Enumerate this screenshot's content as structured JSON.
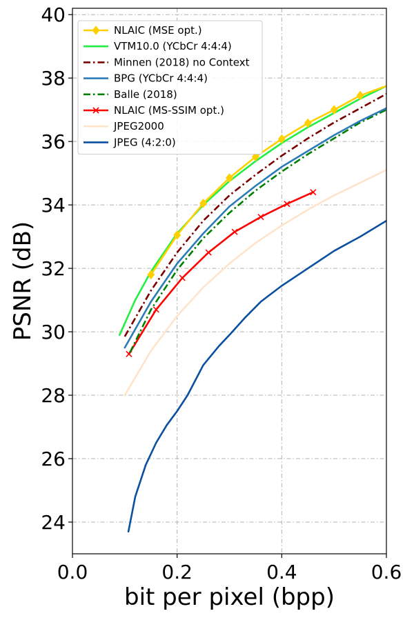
{
  "chart_data": {
    "type": "line",
    "xlabel": "bit per pixel (bpp)",
    "ylabel": "PSNR (dB)",
    "xlim": [
      0.0,
      0.6
    ],
    "ylim": [
      23.0,
      40.2
    ],
    "xticks": [
      0.0,
      0.2,
      0.4,
      0.6
    ],
    "xtick_labels": [
      "0.0",
      "0.2",
      "0.4",
      "0.6"
    ],
    "yticks": [
      24,
      26,
      28,
      30,
      32,
      34,
      36,
      38,
      40
    ],
    "ytick_labels": [
      "24",
      "26",
      "28",
      "30",
      "32",
      "34",
      "36",
      "38",
      "40"
    ],
    "grid": true,
    "legend_position": "top-left",
    "series": [
      {
        "name": "NLAIC (MSE opt.)",
        "color": "#FFD000",
        "style": "solid",
        "marker": "diamond",
        "x": [
          0.15,
          0.2,
          0.25,
          0.3,
          0.35,
          0.4,
          0.45,
          0.5,
          0.55,
          0.6
        ],
        "y": [
          31.8,
          33.05,
          34.05,
          34.85,
          35.52,
          36.08,
          36.58,
          37.0,
          37.45,
          37.75
        ]
      },
      {
        "name": "VTM10.0 (YCbCr 4:4:4)",
        "color": "#22EE44",
        "style": "solid",
        "marker": "none",
        "x": [
          0.09,
          0.12,
          0.15,
          0.2,
          0.25,
          0.3,
          0.35,
          0.4,
          0.45,
          0.5,
          0.55,
          0.6
        ],
        "y": [
          29.9,
          31.0,
          31.9,
          33.1,
          34.0,
          34.75,
          35.38,
          35.95,
          36.45,
          36.9,
          37.35,
          37.75
        ]
      },
      {
        "name": "Minnen (2018) no Context",
        "color": "#7A0000",
        "style": "dashdot",
        "marker": "none",
        "x": [
          0.1,
          0.15,
          0.2,
          0.25,
          0.3,
          0.35,
          0.4,
          0.45,
          0.5,
          0.55,
          0.6
        ],
        "y": [
          29.85,
          31.3,
          32.5,
          33.5,
          34.3,
          34.95,
          35.55,
          36.1,
          36.6,
          37.05,
          37.5
        ]
      },
      {
        "name": "BPG (YCbCr 4:4:4)",
        "color": "#2B7BB9",
        "style": "solid",
        "marker": "none",
        "x": [
          0.1,
          0.15,
          0.2,
          0.25,
          0.3,
          0.35,
          0.4,
          0.45,
          0.5,
          0.55,
          0.6
        ],
        "y": [
          29.5,
          30.95,
          32.15,
          33.1,
          33.95,
          34.6,
          35.2,
          35.7,
          36.2,
          36.65,
          37.05
        ]
      },
      {
        "name": "Balle (2018)",
        "color": "#008000",
        "style": "dashdot",
        "marker": "none",
        "x": [
          0.11,
          0.15,
          0.2,
          0.25,
          0.3,
          0.35,
          0.4,
          0.45,
          0.5,
          0.55,
          0.6
        ],
        "y": [
          29.35,
          30.7,
          31.95,
          32.95,
          33.75,
          34.45,
          35.05,
          35.6,
          36.1,
          36.6,
          37.0
        ]
      },
      {
        "name": "NLAIC (MS-SSIM opt.)",
        "color": "#FF0000",
        "style": "solid",
        "marker": "x",
        "x": [
          0.108,
          0.16,
          0.21,
          0.26,
          0.31,
          0.36,
          0.41,
          0.46
        ],
        "y": [
          29.3,
          30.7,
          31.7,
          32.5,
          33.15,
          33.62,
          34.03,
          34.4
        ]
      },
      {
        "name": "JPEG2000",
        "color": "#FFE4CC",
        "style": "solid",
        "marker": "none",
        "x": [
          0.1,
          0.15,
          0.2,
          0.25,
          0.3,
          0.35,
          0.4,
          0.45,
          0.5,
          0.55,
          0.6
        ],
        "y": [
          28.0,
          29.4,
          30.5,
          31.4,
          32.15,
          32.8,
          33.35,
          33.85,
          34.3,
          34.7,
          35.1
        ]
      },
      {
        "name": "JPEG (4:2:0)",
        "color": "#0A4FA0",
        "style": "solid",
        "marker": "none",
        "x": [
          0.107,
          0.12,
          0.14,
          0.16,
          0.18,
          0.2,
          0.22,
          0.25,
          0.28,
          0.3,
          0.33,
          0.36,
          0.4,
          0.45,
          0.5,
          0.55,
          0.6
        ],
        "y": [
          23.7,
          24.8,
          25.8,
          26.5,
          27.05,
          27.5,
          28.0,
          28.95,
          29.55,
          29.9,
          30.45,
          30.95,
          31.45,
          32.0,
          32.55,
          33.0,
          33.5
        ]
      }
    ]
  }
}
